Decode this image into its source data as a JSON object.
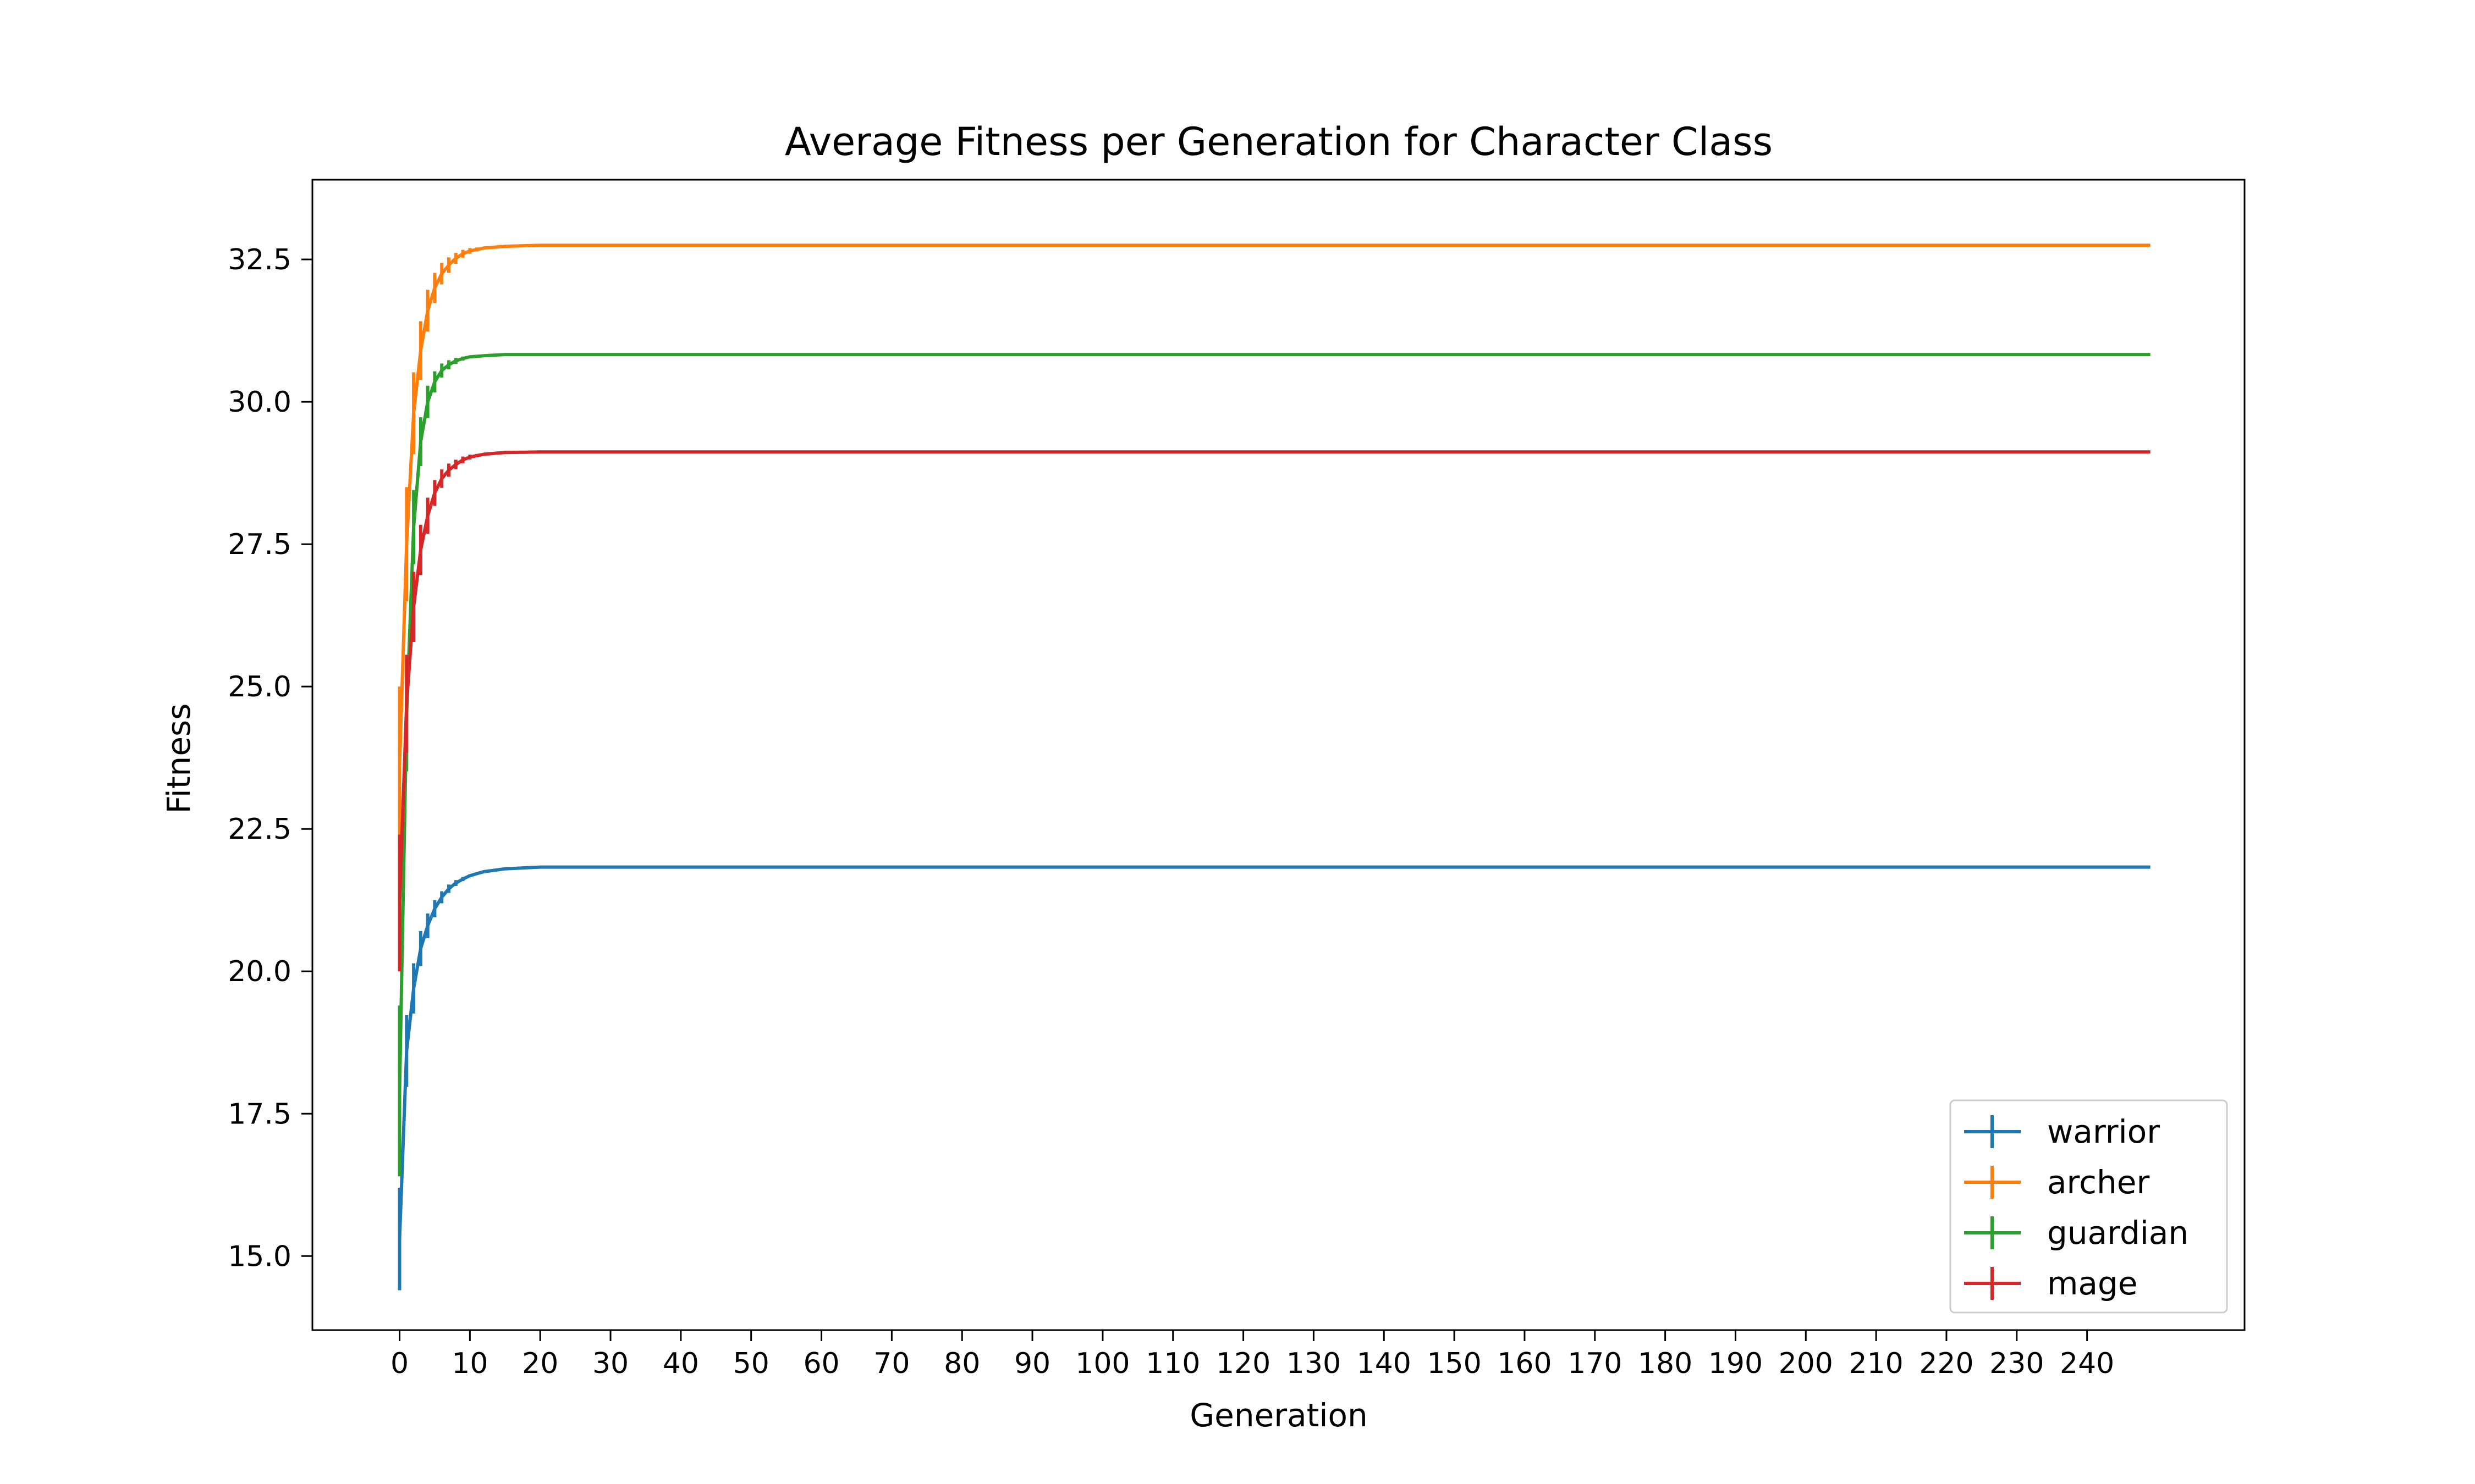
{
  "chart_data": {
    "type": "line",
    "title": "Average Fitness per Generation for Character Class",
    "xlabel": "Generation",
    "ylabel": "Fitness",
    "xlim": [
      -12.4,
      262.4
    ],
    "ylim": [
      13.7,
      33.9
    ],
    "xticks": [
      0,
      10,
      20,
      30,
      40,
      50,
      60,
      70,
      80,
      90,
      100,
      110,
      120,
      130,
      140,
      150,
      160,
      170,
      180,
      190,
      200,
      210,
      220,
      230,
      240
    ],
    "yticks": [
      15.0,
      17.5,
      20.0,
      22.5,
      25.0,
      27.5,
      30.0,
      32.5
    ],
    "x_range": [
      0,
      249
    ],
    "grid": false,
    "legend_position": "lower-right",
    "series": [
      {
        "name": "warrior",
        "color": "#1f77b4",
        "start": 15.3,
        "plateau": 21.83,
        "tau": 3.5,
        "err_start": 0.9,
        "err_tau": 2.8,
        "early": [
          [
            0,
            15.3
          ],
          [
            1,
            18.6
          ],
          [
            2,
            19.7
          ],
          [
            3,
            20.4
          ],
          [
            4,
            20.8
          ],
          [
            5,
            21.1
          ],
          [
            6,
            21.3
          ],
          [
            7,
            21.45
          ],
          [
            8,
            21.55
          ],
          [
            9,
            21.62
          ],
          [
            10,
            21.68
          ],
          [
            12,
            21.75
          ],
          [
            15,
            21.8
          ],
          [
            20,
            21.83
          ]
        ]
      },
      {
        "name": "archer",
        "color": "#ff7f0e",
        "start": 23.6,
        "plateau": 32.75,
        "tau": 3.2,
        "err_start": 1.4,
        "err_tau": 3.0,
        "early": [
          [
            0,
            23.6
          ],
          [
            1,
            27.5
          ],
          [
            2,
            29.8
          ],
          [
            3,
            30.9
          ],
          [
            4,
            31.6
          ],
          [
            5,
            32.0
          ],
          [
            6,
            32.25
          ],
          [
            7,
            32.4
          ],
          [
            8,
            32.52
          ],
          [
            9,
            32.6
          ],
          [
            10,
            32.65
          ],
          [
            12,
            32.7
          ],
          [
            15,
            32.73
          ],
          [
            20,
            32.75
          ]
        ]
      },
      {
        "name": "guardian",
        "color": "#2ca02c",
        "start": 17.9,
        "plateau": 30.83,
        "tau": 2.5,
        "err_start": 1.5,
        "err_tau": 2.4,
        "early": [
          [
            0,
            17.9
          ],
          [
            1,
            24.5
          ],
          [
            2,
            27.8
          ],
          [
            3,
            29.3
          ],
          [
            4,
            30.0
          ],
          [
            5,
            30.35
          ],
          [
            6,
            30.55
          ],
          [
            7,
            30.65
          ],
          [
            8,
            30.72
          ],
          [
            9,
            30.76
          ],
          [
            10,
            30.79
          ],
          [
            12,
            30.81
          ],
          [
            15,
            30.83
          ]
        ]
      },
      {
        "name": "mage",
        "color": "#d62728",
        "start": 21.2,
        "plateau": 29.12,
        "tau": 3.3,
        "err_start": 1.2,
        "err_tau": 3.0,
        "early": [
          [
            0,
            21.2
          ],
          [
            1,
            24.7
          ],
          [
            2,
            26.4
          ],
          [
            3,
            27.4
          ],
          [
            4,
            28.0
          ],
          [
            5,
            28.4
          ],
          [
            6,
            28.65
          ],
          [
            7,
            28.8
          ],
          [
            8,
            28.9
          ],
          [
            9,
            28.98
          ],
          [
            10,
            29.03
          ],
          [
            12,
            29.08
          ],
          [
            15,
            29.11
          ],
          [
            20,
            29.12
          ]
        ]
      }
    ]
  }
}
